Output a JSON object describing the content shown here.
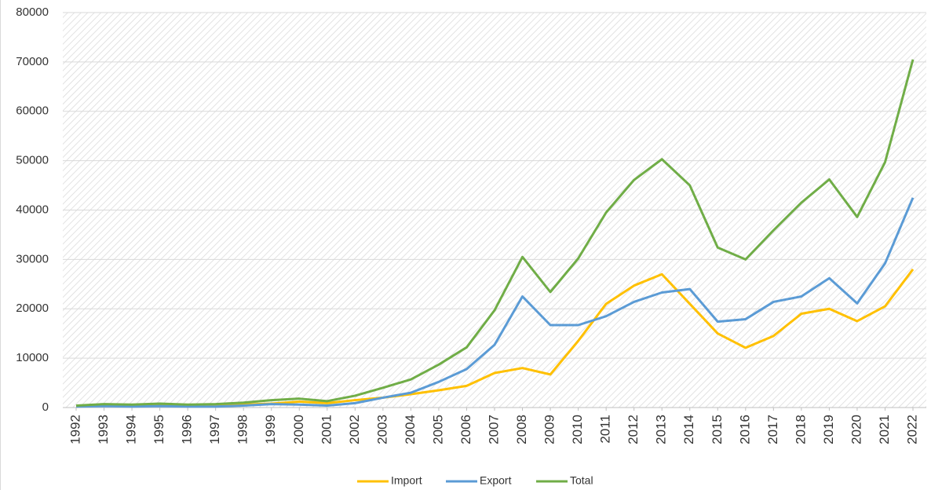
{
  "chart_data": {
    "type": "line",
    "categories": [
      "1992",
      "1993",
      "1994",
      "1995",
      "1996",
      "1997",
      "1998",
      "1999",
      "2000",
      "2001",
      "2002",
      "2003",
      "2004",
      "2005",
      "2006",
      "2007",
      "2008",
      "2009",
      "2010",
      "2011",
      "2012",
      "2013",
      "2014",
      "2015",
      "2016",
      "2017",
      "2018",
      "2019",
      "2020",
      "2021",
      "2022"
    ],
    "series": [
      {
        "name": "Import",
        "color": "#ffc000",
        "values": [
          200,
          400,
          400,
          500,
          400,
          500,
          600,
          800,
          1200,
          900,
          1500,
          2000,
          2700,
          3500,
          4400,
          7000,
          8000,
          6700,
          13500,
          21000,
          24700,
          27000,
          21000,
          15000,
          12100,
          14500,
          19000,
          20000,
          17500,
          20500,
          28000
        ]
      },
      {
        "name": "Export",
        "color": "#5b9bd5",
        "values": [
          200,
          300,
          200,
          300,
          200,
          200,
          400,
          700,
          600,
          400,
          900,
          2000,
          3000,
          5200,
          7800,
          12700,
          22500,
          16700,
          16700,
          18500,
          21400,
          23300,
          24000,
          17400,
          17900,
          21400,
          22500,
          26200,
          21100,
          29200,
          42500
        ]
      },
      {
        "name": "Total",
        "color": "#70ad47",
        "values": [
          400,
          700,
          600,
          800,
          600,
          700,
          1000,
          1500,
          1800,
          1300,
          2400,
          4000,
          5700,
          8700,
          12200,
          19700,
          30500,
          23400,
          30200,
          39500,
          46100,
          50300,
          45000,
          32400,
          30000,
          35900,
          41500,
          46200,
          38600,
          49700,
          70500
        ]
      }
    ],
    "ylim": [
      0,
      80000
    ],
    "yticks": [
      0,
      10000,
      20000,
      30000,
      40000,
      50000,
      60000,
      70000,
      80000
    ],
    "grid": true,
    "legend": "bottom"
  }
}
